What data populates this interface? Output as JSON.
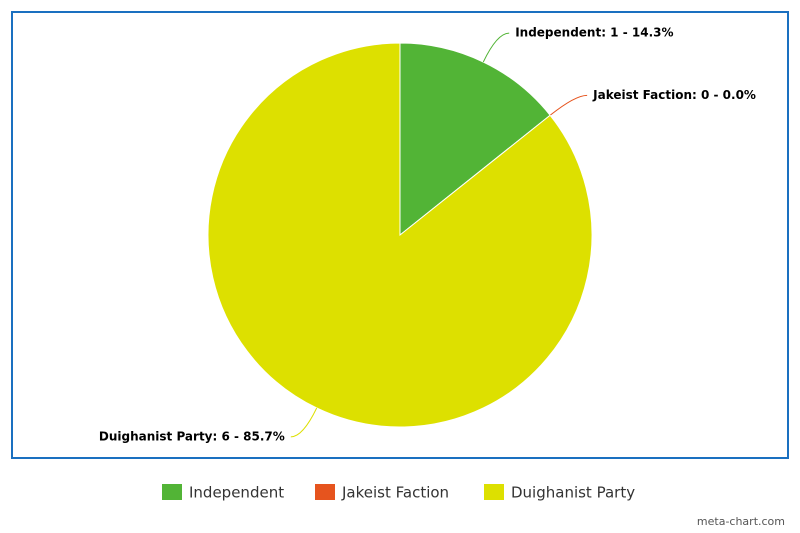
{
  "chart_data": {
    "type": "pie",
    "categories": [
      "Independent",
      "Jakeist Faction",
      "Duighanist Party"
    ],
    "values": [
      1,
      0,
      6
    ],
    "value_labels": [
      "Independent: 1 - 14.3%",
      "Jakeist Faction: 0 - 0.0%",
      "Duighanist Party: 6 - 85.7%"
    ],
    "colors": [
      "#52b436",
      "#e6541e",
      "#dde000"
    ],
    "legend": "bottom",
    "credit": "meta-chart.com"
  }
}
